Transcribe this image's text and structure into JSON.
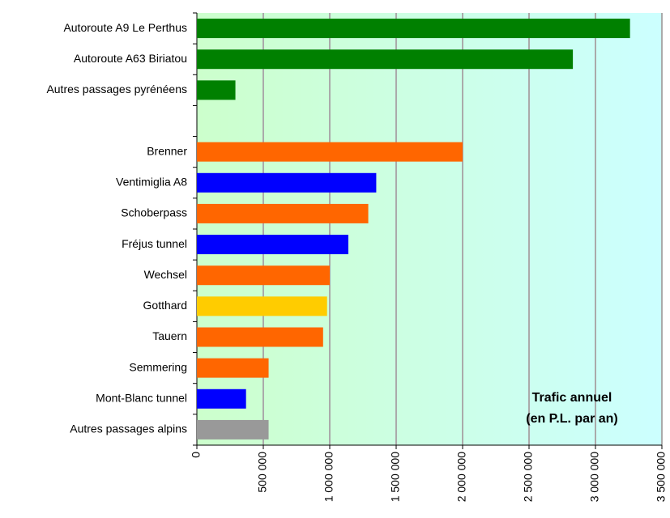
{
  "chart_data": {
    "type": "hbar",
    "categories": [
      "Autoroute A9 Le Perthus",
      "Autoroute A63 Biriatou",
      "Autres passages pyrénéens",
      null,
      "Brenner",
      "Ventimiglia A8",
      "Schoberpass",
      "Fréjus tunnel",
      "Wechsel",
      "Gotthard",
      "Tauern",
      "Semmering",
      "Mont-Blanc tunnel",
      "Autres passages alpins"
    ],
    "values": [
      3260000,
      2830000,
      290000,
      null,
      2000000,
      1350000,
      1290000,
      1140000,
      1000000,
      980000,
      950000,
      540000,
      370000,
      540000
    ],
    "colors": [
      "#008000",
      "#008000",
      "#008000",
      null,
      "#ff6600",
      "#0000ff",
      "#ff6600",
      "#0000ff",
      "#ff6600",
      "#ffcc00",
      "#ff6600",
      "#ff6600",
      "#0000ff",
      "#999999"
    ],
    "xlim": [
      0,
      3500000
    ],
    "xticks": [
      0,
      {
        "value": 500000,
        "label": "500 000"
      },
      {
        "value": 1000000,
        "label": "1 000 000"
      },
      {
        "value": 1500000,
        "label": "1 500 000"
      },
      {
        "value": 2000000,
        "label": "2 000 000"
      },
      {
        "value": 2500000,
        "label": "2 500 000"
      },
      {
        "value": 3000000,
        "label": "3 000 000"
      },
      {
        "value": 3500000,
        "label": "3 500 000"
      }
    ],
    "grid": true,
    "annotation": [
      "Trafic annuel",
      "(en P.L. par an)"
    ]
  }
}
